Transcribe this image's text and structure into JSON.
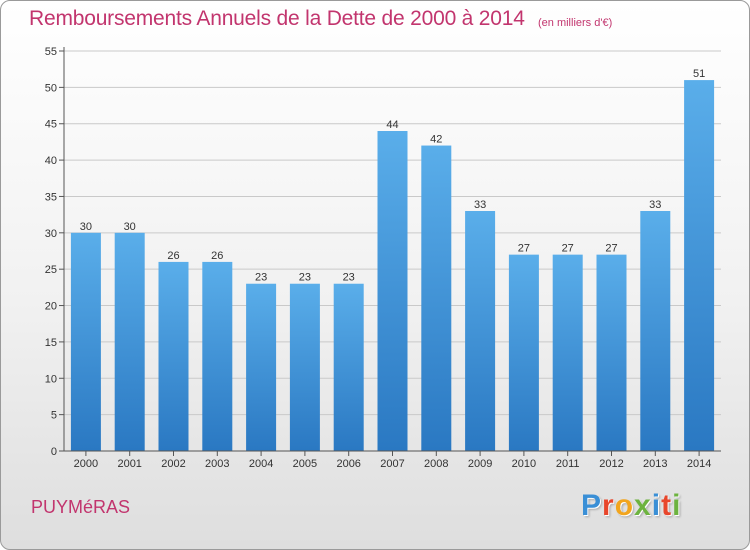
{
  "header": {
    "title": "Remboursements Annuels de la Dette de 2000 à 2014",
    "unit": "(en milliers d'€)"
  },
  "footer": {
    "commune": "PUYMéRAS",
    "brand_letters": [
      "P",
      "r",
      "o",
      "x",
      "i",
      "t",
      "i"
    ],
    "brand_colors": [
      "#3a8fd6",
      "#e8462b",
      "#f2a51e",
      "#6db33f",
      "#3a8fd6",
      "#e8462b",
      "#6db33f"
    ]
  },
  "colors": {
    "bar": "#4a9ee3",
    "bar_dark": "#2f7fc7",
    "title": "#c2356e"
  },
  "chart_data": {
    "type": "bar",
    "categories": [
      "2000",
      "2001",
      "2002",
      "2003",
      "2004",
      "2005",
      "2006",
      "2007",
      "2008",
      "2009",
      "2010",
      "2011",
      "2012",
      "2013",
      "2014"
    ],
    "values": [
      30,
      30,
      26,
      26,
      23,
      23,
      23,
      44,
      42,
      33,
      27,
      27,
      27,
      33,
      51
    ],
    "title": "Remboursements Annuels de la Dette de 2000 à 2014",
    "ylim": [
      0,
      55
    ],
    "yticks": [
      0,
      5,
      10,
      15,
      20,
      25,
      30,
      35,
      40,
      45,
      50,
      55
    ],
    "grid": true,
    "data_labels": true
  }
}
